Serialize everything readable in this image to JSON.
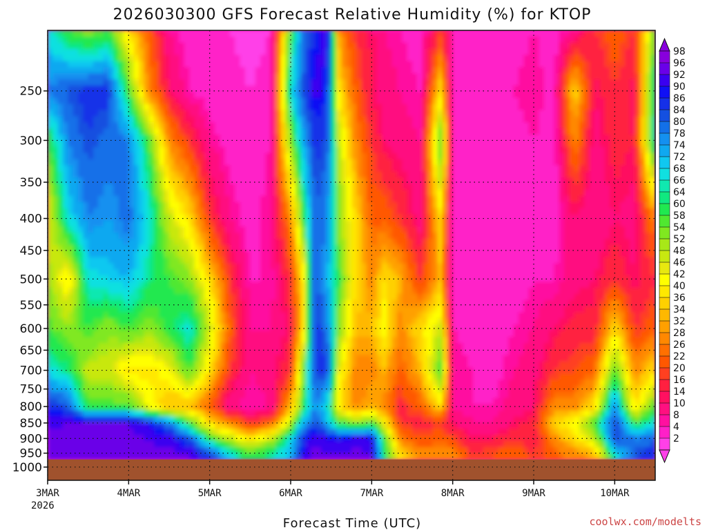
{
  "chart_data": {
    "type": "heatmap",
    "title": "2026030300 GFS Forecast Relative Humidity (%) for KTOP",
    "xlabel": "Forecast Time (UTC)",
    "ylabel": "",
    "credit": "coolwx.com/modelts",
    "x_ticks": [
      {
        "label": "3MAR",
        "sublabel": "2026",
        "day": 0
      },
      {
        "label": "4MAR",
        "day": 1
      },
      {
        "label": "5MAR",
        "day": 2
      },
      {
        "label": "6MAR",
        "day": 3
      },
      {
        "label": "7MAR",
        "day": 4
      },
      {
        "label": "8MAR",
        "day": 5
      },
      {
        "label": "9MAR",
        "day": 6
      },
      {
        "label": "10MAR",
        "day": 7
      }
    ],
    "x_range_days": [
      0,
      7.5
    ],
    "y_ticks": [
      250,
      300,
      350,
      400,
      450,
      500,
      550,
      600,
      650,
      700,
      750,
      800,
      850,
      900,
      950,
      1000
    ],
    "y_range_hpa": [
      200,
      1050
    ],
    "y_scale": "log-pressure",
    "grid": true,
    "colorbar_labels": [
      98,
      96,
      92,
      90,
      86,
      84,
      80,
      78,
      74,
      72,
      68,
      66,
      64,
      60,
      58,
      54,
      52,
      48,
      46,
      42,
      40,
      36,
      34,
      32,
      28,
      26,
      22,
      20,
      16,
      14,
      10,
      8,
      4,
      2
    ],
    "colorbar_colors": [
      "#8800dd",
      "#6a00e8",
      "#3a00f0",
      "#1010f5",
      "#1530e8",
      "#1450e0",
      "#1370e8",
      "#1490f0",
      "#10a8f0",
      "#10c8f0",
      "#10e0e0",
      "#10e8b0",
      "#10e880",
      "#20e850",
      "#50e830",
      "#80e820",
      "#a8e818",
      "#c8e810",
      "#e8e810",
      "#ffff00",
      "#ffe800",
      "#ffd000",
      "#ffb800",
      "#ffa000",
      "#ff8800",
      "#ff7000",
      "#ff5800",
      "#ff4020",
      "#ff2040",
      "#ff1060",
      "#ff1080",
      "#ff10a0",
      "#ff20c8",
      "#ff40e8"
    ],
    "ground_color": "#a0522d",
    "ground_top_hpa": 972,
    "columns": [
      {
        "day": 0.0,
        "rh": [
          70,
          80,
          60,
          45,
          55,
          60,
          70,
          88,
          95,
          97,
          97
        ]
      },
      {
        "day": 0.25,
        "rh": [
          60,
          85,
          80,
          70,
          40,
          55,
          65,
          85,
          96,
          97,
          97
        ]
      },
      {
        "day": 0.5,
        "rh": [
          55,
          88,
          86,
          80,
          70,
          60,
          50,
          60,
          96,
          97,
          97
        ]
      },
      {
        "day": 0.75,
        "rh": [
          60,
          88,
          82,
          78,
          72,
          55,
          50,
          60,
          96,
          97,
          97
        ]
      },
      {
        "day": 1.0,
        "rh": [
          40,
          60,
          80,
          82,
          74,
          60,
          40,
          60,
          96,
          97,
          97
        ]
      },
      {
        "day": 1.25,
        "rh": [
          25,
          30,
          60,
          70,
          65,
          55,
          40,
          45,
          92,
          96,
          97
        ]
      },
      {
        "day": 1.5,
        "rh": [
          10,
          15,
          30,
          50,
          60,
          62,
          45,
          35,
          80,
          94,
          97
        ]
      },
      {
        "day": 1.75,
        "rh": [
          6,
          8,
          20,
          40,
          55,
          70,
          60,
          35,
          60,
          85,
          96
        ]
      },
      {
        "day": 2.0,
        "rh": [
          5,
          6,
          10,
          20,
          40,
          50,
          40,
          25,
          40,
          60,
          86
        ]
      },
      {
        "day": 2.25,
        "rh": [
          4,
          5,
          6,
          10,
          20,
          25,
          20,
          10,
          30,
          50,
          70
        ]
      },
      {
        "day": 2.5,
        "rh": [
          3,
          4,
          5,
          6,
          8,
          10,
          10,
          8,
          20,
          40,
          60
        ]
      },
      {
        "day": 2.75,
        "rh": [
          4,
          5,
          8,
          10,
          8,
          10,
          12,
          10,
          25,
          50,
          65
        ]
      },
      {
        "day": 3.0,
        "rh": [
          60,
          70,
          55,
          30,
          20,
          15,
          20,
          35,
          50,
          70,
          75
        ]
      },
      {
        "day": 3.15,
        "rh": [
          80,
          85,
          75,
          60,
          40,
          40,
          55,
          60,
          75,
          88,
          92
        ]
      },
      {
        "day": 3.3,
        "rh": [
          90,
          94,
          88,
          84,
          86,
          88,
          86,
          80,
          85,
          96,
          97
        ]
      },
      {
        "day": 3.45,
        "rh": [
          95,
          90,
          85,
          80,
          75,
          82,
          88,
          70,
          75,
          92,
          96
        ]
      },
      {
        "day": 3.6,
        "rh": [
          30,
          40,
          50,
          55,
          60,
          55,
          45,
          40,
          60,
          90,
          96
        ]
      },
      {
        "day": 3.8,
        "rh": [
          20,
          25,
          30,
          40,
          40,
          35,
          30,
          30,
          55,
          95,
          97
        ]
      },
      {
        "day": 4.0,
        "rh": [
          15,
          15,
          20,
          25,
          30,
          35,
          30,
          35,
          60,
          92,
          96
        ]
      },
      {
        "day": 4.15,
        "rh": [
          10,
          12,
          14,
          25,
          40,
          45,
          35,
          30,
          45,
          60,
          65
        ]
      },
      {
        "day": 4.35,
        "rh": [
          8,
          10,
          12,
          20,
          35,
          30,
          25,
          18,
          20,
          30,
          40
        ]
      },
      {
        "day": 4.6,
        "rh": [
          6,
          8,
          10,
          12,
          20,
          40,
          35,
          25,
          18,
          22,
          30
        ]
      },
      {
        "day": 4.85,
        "rh": [
          20,
          40,
          60,
          40,
          35,
          50,
          60,
          40,
          20,
          25,
          30
        ]
      },
      {
        "day": 5.0,
        "rh": [
          8,
          8,
          6,
          6,
          6,
          8,
          10,
          10,
          14,
          22,
          30
        ]
      },
      {
        "day": 5.25,
        "rh": [
          6,
          6,
          5,
          5,
          5,
          6,
          8,
          8,
          10,
          14,
          20
        ]
      },
      {
        "day": 5.5,
        "rh": [
          5,
          5,
          5,
          4,
          5,
          5,
          6,
          8,
          10,
          16,
          22
        ]
      },
      {
        "day": 5.75,
        "rh": [
          6,
          8,
          6,
          5,
          6,
          8,
          10,
          12,
          14,
          20,
          26
        ]
      },
      {
        "day": 6.0,
        "rh": [
          8,
          10,
          8,
          6,
          8,
          10,
          12,
          14,
          18,
          16,
          20
        ]
      },
      {
        "day": 6.25,
        "rh": [
          6,
          6,
          6,
          5,
          8,
          14,
          20,
          30,
          40,
          30,
          25
        ]
      },
      {
        "day": 6.5,
        "rh": [
          10,
          40,
          30,
          14,
          12,
          18,
          22,
          30,
          45,
          40,
          30
        ]
      },
      {
        "day": 6.75,
        "rh": [
          20,
          14,
          12,
          10,
          14,
          18,
          25,
          40,
          60,
          50,
          35
        ]
      },
      {
        "day": 7.0,
        "rh": [
          25,
          20,
          18,
          14,
          20,
          40,
          60,
          80,
          88,
          86,
          70
        ]
      },
      {
        "day": 7.25,
        "rh": [
          20,
          14,
          16,
          12,
          14,
          20,
          30,
          40,
          60,
          80,
          85
        ]
      },
      {
        "day": 7.5,
        "rh": [
          60,
          70,
          72,
          30,
          20,
          25,
          40,
          60,
          70,
          82,
          90
        ]
      }
    ],
    "levels_hpa": [
      200,
      250,
      300,
      400,
      500,
      600,
      700,
      800,
      850,
      900,
      950
    ]
  }
}
